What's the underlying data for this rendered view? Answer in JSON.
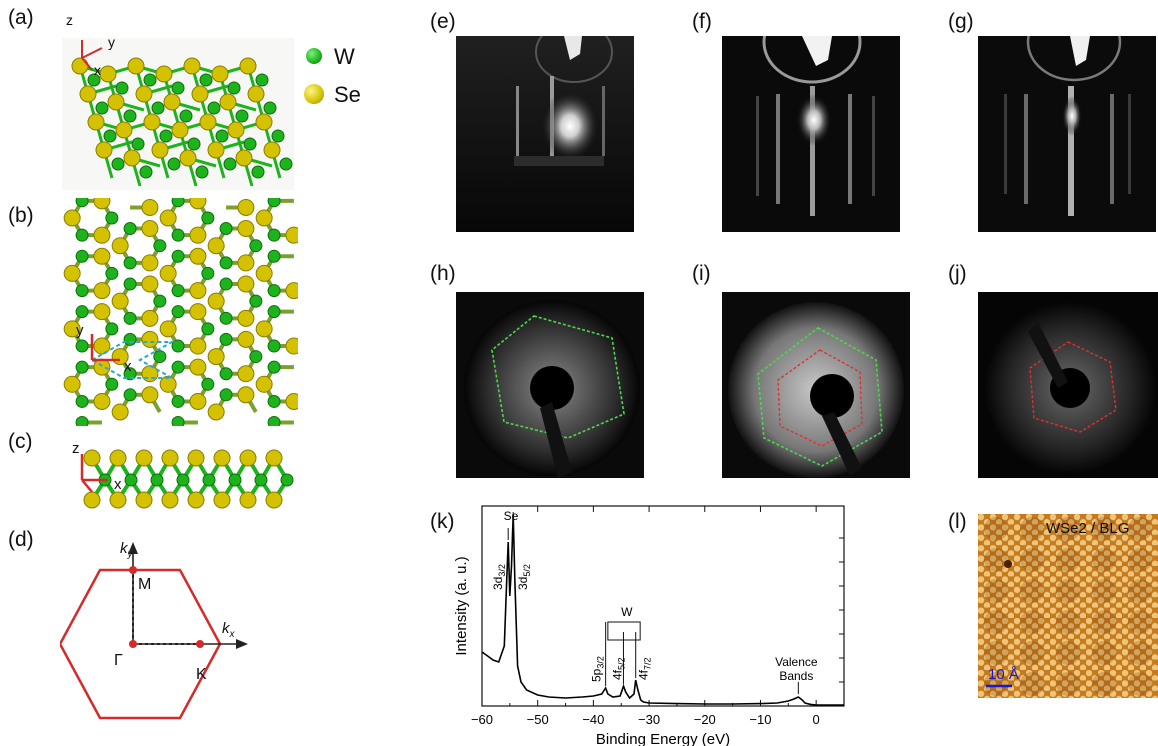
{
  "panel_labels": {
    "a": "(a)",
    "b": "(b)",
    "c": "(c)",
    "d": "(d)",
    "e": "(e)",
    "f": "(f)",
    "g": "(g)",
    "h": "(h)",
    "i": "(i)",
    "j": "(j)",
    "k": "(k)",
    "l": "(l)"
  },
  "legend": {
    "w_label": "W",
    "se_label": "Se",
    "w_color": "#1db31d",
    "se_color": "#d4c200"
  },
  "axes_labels": {
    "x": "x",
    "y": "y",
    "z": "z"
  },
  "bz": {
    "ky": "k",
    "ky_sub": "y",
    "kx": "k",
    "kx_sub": "x",
    "gamma": "Γ",
    "m": "M",
    "k": "K"
  },
  "stm": {
    "title": "WSe2 / BLG",
    "scale": "10 Å"
  },
  "colors": {
    "accent_red": "#d42a2a",
    "hex_green": "#4cd64c",
    "hex_red": "#e03030",
    "stm_bg": "#c47a1e"
  },
  "chart_data": {
    "type": "line",
    "xlabel": "Binding Energy (eV)",
    "ylabel": "Intensity (a. u.)",
    "xlim": [
      -60,
      5
    ],
    "xticks": [
      -60,
      -50,
      -40,
      -30,
      -20,
      -10,
      0
    ],
    "xtick_labels": [
      "−60",
      "−50",
      "−40",
      "−30",
      "−20",
      "−10",
      "0"
    ],
    "series": [
      {
        "x": [
          -60,
          -59,
          -58,
          -57,
          -56,
          -55.6,
          -55.3,
          -55.0,
          -54.7,
          -54.4,
          -54.1,
          -53.6,
          -53,
          -52,
          -50,
          -48,
          -45,
          -42,
          -40,
          -38.5,
          -37.8,
          -37.4,
          -36.5,
          -35.2,
          -34.6,
          -34.2,
          -33.5,
          -32.7,
          -32.4,
          -32.0,
          -31.5,
          -31,
          -30,
          -25,
          -20,
          -15,
          -10,
          -7,
          -5,
          -4,
          -3.2,
          -2.5,
          -2,
          -1,
          0,
          2,
          5
        ],
        "y": [
          0.27,
          0.25,
          0.23,
          0.22,
          0.3,
          0.6,
          0.82,
          0.55,
          0.7,
          0.96,
          0.62,
          0.2,
          0.12,
          0.08,
          0.055,
          0.045,
          0.04,
          0.045,
          0.05,
          0.06,
          0.09,
          0.06,
          0.045,
          0.05,
          0.1,
          0.07,
          0.04,
          0.06,
          0.13,
          0.08,
          0.03,
          0.02,
          0.015,
          0.012,
          0.01,
          0.01,
          0.012,
          0.015,
          0.025,
          0.035,
          0.045,
          0.03,
          0.015,
          0.008,
          0.005,
          0.005,
          0.005
        ]
      }
    ],
    "annotations": [
      {
        "text": "Se",
        "x": -54.8
      },
      {
        "text": "3d",
        "sub": "3/2",
        "x": -55.3
      },
      {
        "text": "3d",
        "sub": "5/2",
        "x": -54.4
      },
      {
        "text": "W",
        "x": -34
      },
      {
        "text": "5p",
        "sub": "3/2",
        "x": -37.8
      },
      {
        "text": "4f",
        "sub": "5/2",
        "x": -34.6
      },
      {
        "text": "4f",
        "sub": "7/2",
        "x": -32.4
      },
      {
        "text": "Valence Bands",
        "x": -3.2
      }
    ]
  }
}
